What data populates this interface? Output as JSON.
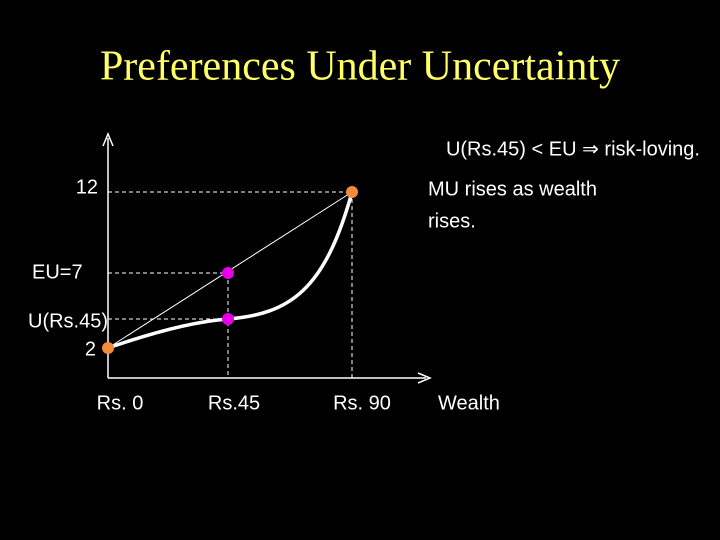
{
  "title": "Preferences Under Uncertainty",
  "annotation": "U(Rs.45) < EU ⇒ risk-loving.",
  "note": [
    "MU rises as wealth",
    "rises."
  ],
  "y_labels": {
    "top": "12",
    "middle": "EU=7",
    "lower": "U(Rs.45)",
    "bottom": "2"
  },
  "x_labels": [
    "Rs. 0",
    "Rs.45",
    "Rs. 90",
    "Wealth"
  ]
}
